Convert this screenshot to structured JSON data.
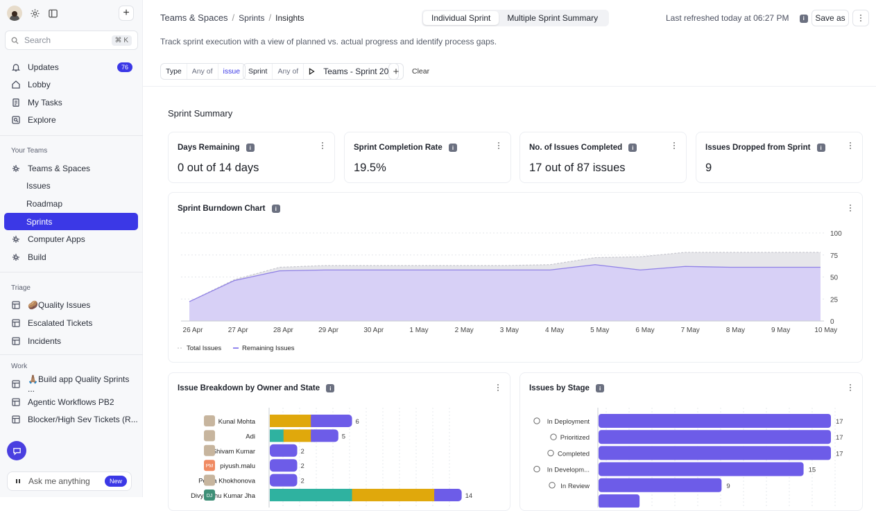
{
  "sidebar": {
    "search": {
      "placeholder": "Search",
      "shortcut": "⌘ K"
    },
    "top_items": [
      {
        "label": "Updates",
        "badge": "76"
      },
      {
        "label": "Lobby"
      },
      {
        "label": "My Tasks"
      },
      {
        "label": "Explore"
      }
    ],
    "teams_header": "Your Teams",
    "teams_items": [
      {
        "label": "Teams & Spaces"
      },
      {
        "label": "Issues"
      },
      {
        "label": "Roadmap"
      },
      {
        "label": "Sprints"
      },
      {
        "label": "Computer Apps"
      },
      {
        "label": "Build"
      }
    ],
    "triage_header": "Triage",
    "triage_items": [
      {
        "label": "🥔Quality Issues"
      },
      {
        "label": "Escalated Tickets"
      },
      {
        "label": "Incidents"
      }
    ],
    "work_header": "Work",
    "work_items": [
      {
        "label": "🙏🏽Build app Quality Sprints ..."
      },
      {
        "label": "Agentic Workflows PB2"
      },
      {
        "label": "Blocker/High Sev Tickets (R..."
      }
    ],
    "ask": {
      "label": "Ask me anything",
      "badge": "New"
    }
  },
  "header": {
    "breadcrumb": [
      "Teams & Spaces",
      "Sprints",
      "Insights"
    ],
    "tabs": [
      "Individual Sprint",
      "Multiple Sprint Summary"
    ],
    "refreshed": "Last refreshed today at 06:27 PM",
    "save_as": "Save as",
    "description": "Track sprint execution with a view of planned vs. actual progress and identify process gaps."
  },
  "filters": {
    "type": {
      "label": "Type",
      "op": "Any of",
      "value": "issue"
    },
    "sprint": {
      "label": "Sprint",
      "op": "Any of",
      "value": "Teams - Sprint 20"
    },
    "clear": "Clear"
  },
  "summary": {
    "title": "Sprint Summary",
    "cards": [
      {
        "title": "Days Remaining",
        "value": "0 out of 14 days"
      },
      {
        "title": "Sprint Completion Rate",
        "value": "19.5%"
      },
      {
        "title": "No. of Issues Completed",
        "value": "17 out of 87 issues"
      },
      {
        "title": "Issues Dropped from Sprint",
        "value": "9"
      }
    ]
  },
  "colors": {
    "accent": "#3b38e6",
    "purple": "#6d5ce8",
    "gold": "#e0a80c",
    "teal": "#2fb2a0"
  },
  "chart_data": [
    {
      "type": "area",
      "title": "Sprint Burndown Chart",
      "x": [
        "26 Apr",
        "27 Apr",
        "28 Apr",
        "29 Apr",
        "30 Apr",
        "1 May",
        "2 May",
        "3 May",
        "4 May",
        "5 May",
        "6 May",
        "7 May",
        "8 May",
        "9 May",
        "10 May"
      ],
      "ylim": [
        0,
        100
      ],
      "yticks": [
        "0",
        "25",
        "50",
        "75",
        "100"
      ],
      "series": [
        {
          "name": "Total Issues",
          "values": [
            22,
            47,
            61,
            63,
            63,
            63,
            63,
            63,
            64,
            72,
            73,
            78,
            78,
            78,
            78
          ]
        },
        {
          "name": "Remaining Issues",
          "values": [
            22,
            46,
            57,
            58,
            58,
            58,
            58,
            58,
            58,
            64,
            58,
            62,
            61,
            61,
            61
          ]
        }
      ],
      "legend_position": "bottom-left"
    },
    {
      "type": "bar",
      "title": "Issue Breakdown by Owner and State",
      "orientation": "horizontal",
      "stacked": true,
      "xlim": [
        0,
        15
      ],
      "rows": [
        {
          "name": "Kunal Mohta",
          "total": "6",
          "avatar": "",
          "segments": [
            {
              "color": "#e0a80c",
              "value": 3
            },
            {
              "color": "#6d5ce8",
              "value": 3
            }
          ]
        },
        {
          "name": "Adi",
          "total": "5",
          "avatar": "",
          "segments": [
            {
              "color": "#2fb2a0",
              "value": 1
            },
            {
              "color": "#e0a80c",
              "value": 2
            },
            {
              "color": "#6d5ce8",
              "value": 2
            }
          ]
        },
        {
          "name": "Shivam Kumar",
          "total": "2",
          "avatar": "",
          "segments": [
            {
              "color": "#6d5ce8",
              "value": 2
            }
          ]
        },
        {
          "name": "piyush.malu",
          "total": "2",
          "avatar": "PM",
          "segments": [
            {
              "color": "#6d5ce8",
              "value": 2
            }
          ]
        },
        {
          "name": "Polina Khokhonova",
          "total": "2",
          "avatar": "",
          "segments": [
            {
              "color": "#6d5ce8",
              "value": 2
            }
          ]
        },
        {
          "name": "Divyanshu Kumar Jha",
          "total": "14",
          "avatar": "DJ",
          "segments": [
            {
              "color": "#2fb2a0",
              "value": 6
            },
            {
              "color": "#e0a80c",
              "value": 6
            },
            {
              "color": "#6d5ce8",
              "value": 2
            }
          ]
        }
      ]
    },
    {
      "type": "bar",
      "title": "Issues by Stage",
      "orientation": "horizontal",
      "xlim": [
        0,
        17
      ],
      "categories": [
        "In Deployment",
        "Prioritized",
        "Completed",
        "In Developm...",
        "In Review",
        ""
      ],
      "values": [
        17,
        17,
        17,
        15,
        9,
        3
      ],
      "labels": [
        "17",
        "17",
        "17",
        "15",
        "9",
        ""
      ]
    }
  ]
}
